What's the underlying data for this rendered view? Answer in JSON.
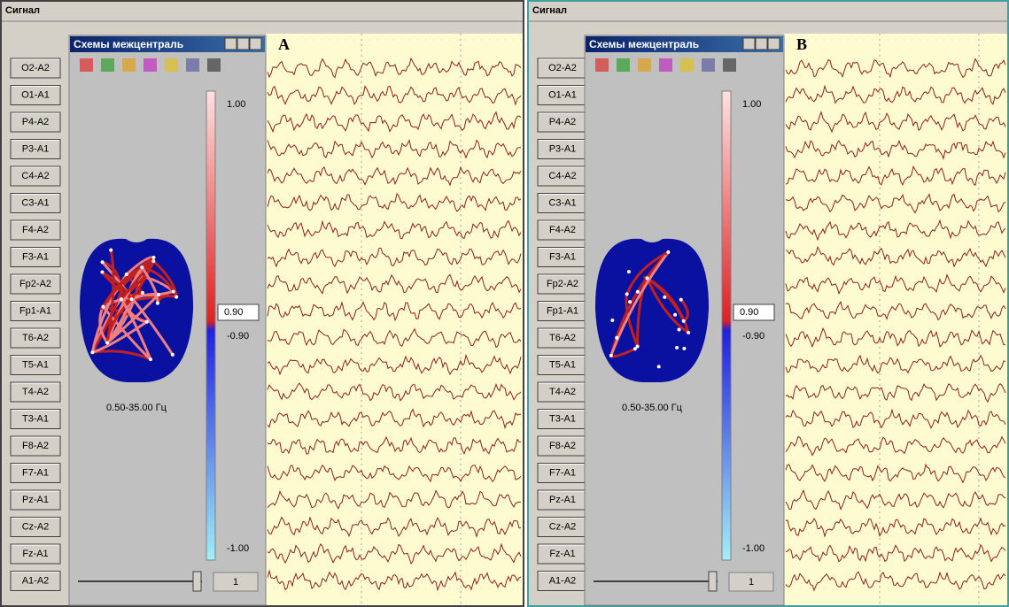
{
  "panels": [
    {
      "header": "Сигнал",
      "window_title": "Схемы межцентраль",
      "label": "A",
      "channels": [
        "O2-A2",
        "O1-A1",
        "P4-A2",
        "P3-A1",
        "C4-A2",
        "C3-A1",
        "F4-A2",
        "F3-A1",
        "Fp2-A2",
        "Fp1-A1",
        "T6-A2",
        "T5-A1",
        "T4-A2",
        "T3-A1",
        "F8-A2",
        "F7-A1",
        "Pz-A1",
        "Cz-A2",
        "Fz-A1",
        "A1-A2"
      ],
      "scale": {
        "top": "1.00",
        "threshold": "0.90",
        "threshold_low": "-0.90",
        "bottom": "-1.00"
      },
      "frequency": "0.50-35.00 Гц",
      "slider_value": "1"
    },
    {
      "header": "Сигнал",
      "window_title": "Схемы межцентраль",
      "label": "B",
      "channels": [
        "O2-A2",
        "O1-A1",
        "P4-A2",
        "P3-A1",
        "C4-A2",
        "C3-A1",
        "F4-A2",
        "F3-A1",
        "Fp2-A2",
        "Fp1-A1",
        "T6-A2",
        "T5-A1",
        "T4-A2",
        "T3-A1",
        "F8-A2",
        "F7-A1",
        "Pz-A1",
        "Cz-A2",
        "Fz-A1",
        "A1-A2"
      ],
      "scale": {
        "top": "1.00",
        "threshold": "0.90",
        "threshold_low": "-0.90",
        "bottom": "-1.00"
      },
      "frequency": "0.50-35.00 Гц",
      "slider_value": "1"
    }
  ]
}
